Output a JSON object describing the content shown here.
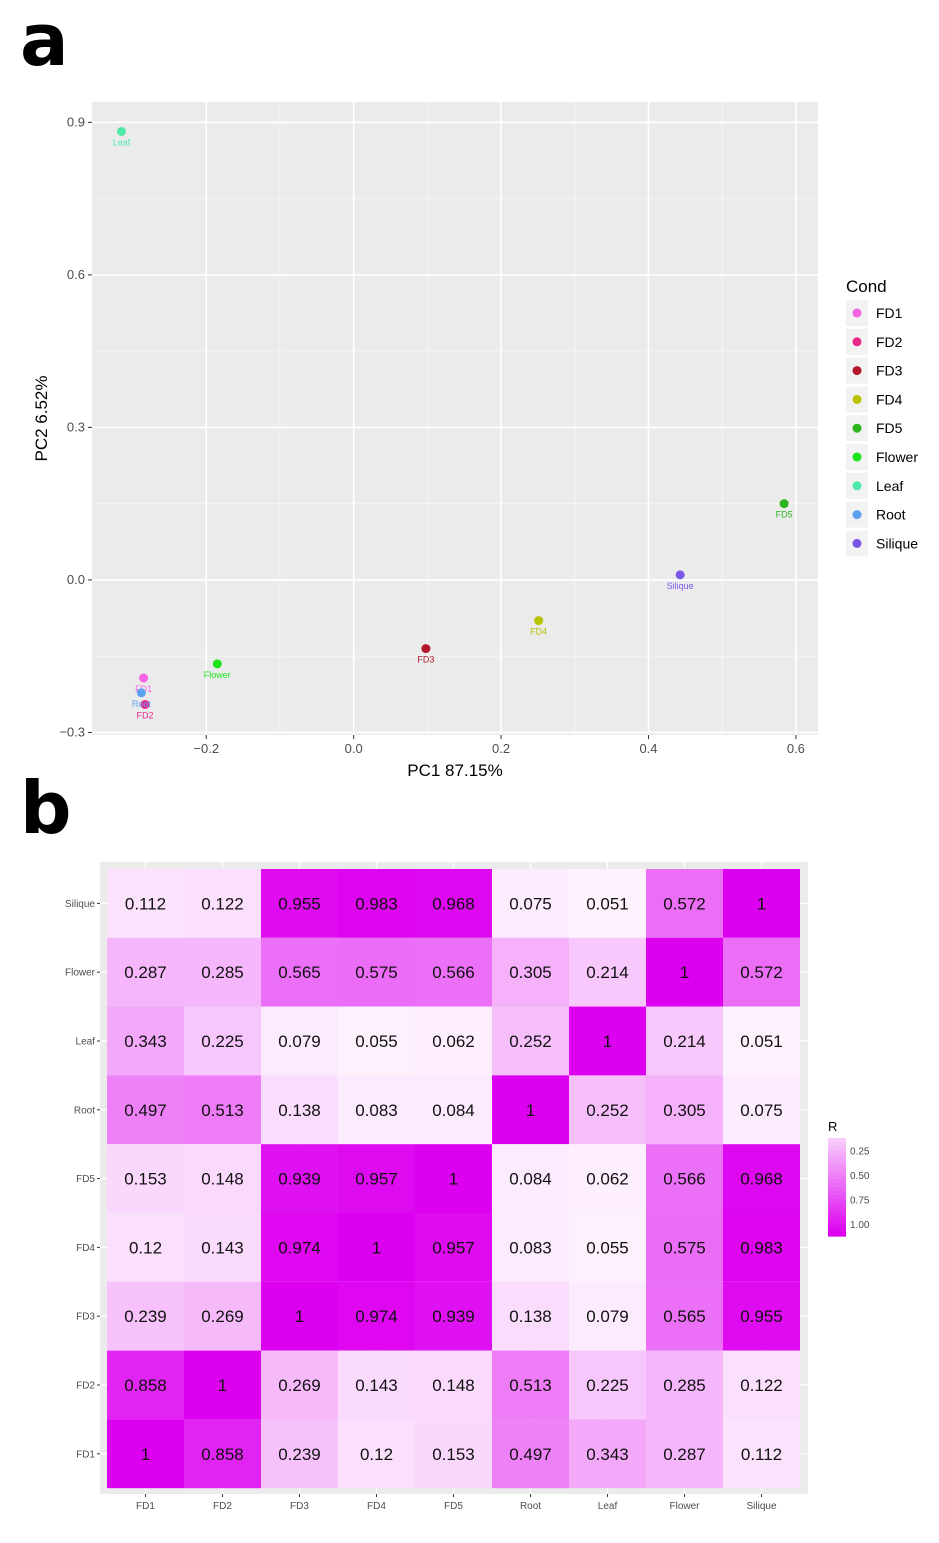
{
  "panels": {
    "a": "a",
    "b": "b"
  },
  "chart_data": [
    {
      "type": "scatter",
      "title": "",
      "xlabel": "PC1  87.15%",
      "ylabel": "PC2  6.52%",
      "xlim": [
        -0.355,
        0.63
      ],
      "ylim": [
        -0.305,
        0.94
      ],
      "xticks": [
        -0.2,
        0.0,
        0.2,
        0.4,
        0.6
      ],
      "xtick_labels": [
        "−0.2",
        "0.0",
        "0.2",
        "0.4",
        "0.6"
      ],
      "yticks": [
        -0.3,
        0.0,
        0.3,
        0.6,
        0.9
      ],
      "ytick_labels": [
        "−0.3",
        "0.0",
        "0.3",
        "0.6",
        "0.9"
      ],
      "grid": true,
      "legend_title": "Cond",
      "legend_position": "right",
      "points": [
        {
          "name": "FD1",
          "x": -0.285,
          "y": -0.193,
          "color": "#F564E3"
        },
        {
          "name": "FD2",
          "x": -0.283,
          "y": -0.245,
          "color": "#E7298A"
        },
        {
          "name": "FD3",
          "x": 0.098,
          "y": -0.135,
          "color": "#B2182B"
        },
        {
          "name": "FD4",
          "x": 0.251,
          "y": -0.08,
          "color": "#B8C400"
        },
        {
          "name": "FD5",
          "x": 0.584,
          "y": 0.15,
          "color": "#2DB51F"
        },
        {
          "name": "Flower",
          "x": -0.185,
          "y": -0.165,
          "color": "#1CE31C"
        },
        {
          "name": "Leaf",
          "x": -0.315,
          "y": 0.882,
          "color": "#4FE8A8"
        },
        {
          "name": "Root",
          "x": -0.288,
          "y": -0.222,
          "color": "#5DA0F0"
        },
        {
          "name": "Silique",
          "x": 0.443,
          "y": 0.01,
          "color": "#7B57E8"
        }
      ]
    },
    {
      "type": "heatmap",
      "title": "",
      "x_categories": [
        "FD1",
        "FD2",
        "FD3",
        "FD4",
        "FD5",
        "Root",
        "Leaf",
        "Flower",
        "Silique"
      ],
      "y_categories_top_to_bottom": [
        "Silique",
        "Flower",
        "Leaf",
        "Root",
        "FD5",
        "FD4",
        "FD3",
        "FD2",
        "FD1"
      ],
      "values": [
        [
          0.112,
          0.122,
          0.955,
          0.983,
          0.968,
          0.075,
          0.051,
          0.572,
          1
        ],
        [
          0.287,
          0.285,
          0.565,
          0.575,
          0.566,
          0.305,
          0.214,
          1,
          0.572
        ],
        [
          0.343,
          0.225,
          0.079,
          0.055,
          0.062,
          0.252,
          1,
          0.214,
          0.051
        ],
        [
          0.497,
          0.513,
          0.138,
          0.083,
          0.084,
          1,
          0.252,
          0.305,
          0.075
        ],
        [
          0.153,
          0.148,
          0.939,
          0.957,
          1,
          0.084,
          0.062,
          0.566,
          0.968
        ],
        [
          0.12,
          0.143,
          0.974,
          1,
          0.957,
          0.083,
          0.055,
          0.575,
          0.983
        ],
        [
          0.239,
          0.269,
          1,
          0.974,
          0.939,
          0.138,
          0.079,
          0.565,
          0.955
        ],
        [
          0.858,
          1,
          0.269,
          0.143,
          0.148,
          0.513,
          0.225,
          0.285,
          0.122
        ],
        [
          1,
          0.858,
          0.239,
          0.12,
          0.153,
          0.497,
          0.343,
          0.287,
          0.112
        ]
      ],
      "legend_title": "R",
      "legend_position": "right",
      "legend_breaks": [
        "0.25",
        "0.50",
        "0.75",
        "1.00"
      ],
      "color_low": "#ffffff",
      "color_high": "#dd00f0"
    }
  ]
}
